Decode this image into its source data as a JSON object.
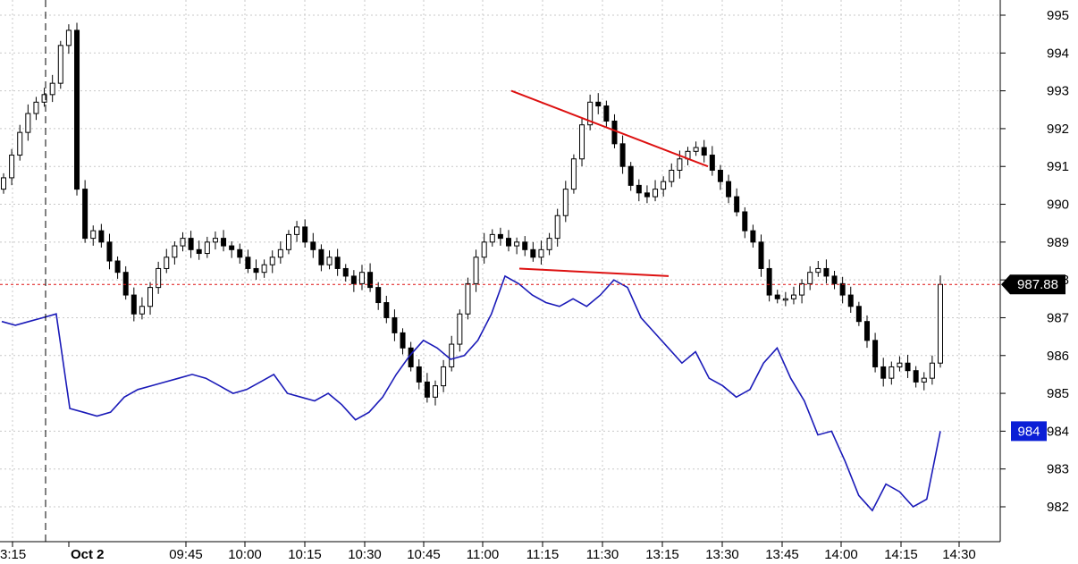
{
  "chart_data": {
    "type": "candlestick",
    "y_axis": {
      "ticks": [
        995,
        994,
        993,
        992,
        991,
        990,
        989,
        988,
        987,
        986,
        985,
        984,
        983,
        982
      ],
      "tick_labels": [
        "995",
        "994",
        "993",
        "992",
        "991",
        "990",
        "989",
        "988",
        "987",
        "986",
        "985",
        "984",
        "983",
        "982"
      ],
      "range": [
        981.2,
        995.4
      ],
      "side": "right"
    },
    "x_axis": {
      "tick_labels": [
        "3:15",
        "Oct 2",
        "09:45",
        "10:00",
        "10:15",
        "10:30",
        "10:45",
        "11:00",
        "11:15",
        "11:30",
        "13:15",
        "13:30",
        "13:45",
        "14:00",
        "14:15",
        "14:30"
      ],
      "bold_labels": [
        "Oct 2"
      ],
      "session_divider_label": "Oct 2"
    },
    "grid": true,
    "current_price_label": "987.88",
    "current_price": 987.88,
    "secondary_price_label": "984",
    "secondary_price": 984,
    "colors": {
      "candle_up": "#ffffff",
      "candle_down": "#000000",
      "overlay_line": "#1a1ab8",
      "trend_lines": "#dd1111",
      "price_line": "#dd1111",
      "secondary_tag": "#0b1fd6"
    },
    "price_series_closes": [
      990.7,
      991.3,
      991.9,
      992.4,
      992.7,
      992.9,
      993.2,
      994.2,
      994.6,
      990.4,
      989.1,
      989.3,
      989.0,
      988.5,
      988.2,
      987.6,
      987.1,
      987.3,
      987.8,
      988.3,
      988.6,
      988.9,
      989.1,
      988.8,
      988.7,
      989.0,
      989.1,
      988.9,
      988.8,
      988.6,
      988.3,
      988.2,
      988.4,
      988.6,
      988.8,
      989.2,
      989.4,
      989.0,
      988.8,
      988.4,
      988.6,
      988.3,
      988.1,
      987.9,
      988.2,
      987.8,
      987.4,
      987.0,
      986.6,
      986.2,
      985.7,
      985.3,
      984.9,
      985.2,
      985.7,
      986.3,
      987.1,
      987.9,
      988.6,
      989.0,
      989.2,
      989.1,
      988.9,
      989.0,
      988.8,
      988.6,
      988.8,
      989.1,
      989.7,
      990.4,
      991.2,
      992.1,
      992.7,
      992.6,
      992.2,
      991.6,
      991.0,
      990.5,
      990.3,
      990.2,
      990.4,
      990.6,
      990.9,
      991.2,
      991.4,
      991.5,
      991.3,
      990.9,
      990.6,
      990.2,
      989.8,
      989.3,
      989.0,
      988.3,
      987.6,
      987.5,
      987.5,
      987.6,
      987.9,
      988.2,
      988.3,
      988.1,
      987.9,
      987.6,
      987.3,
      986.9,
      986.4,
      985.7,
      985.4,
      985.7,
      985.8,
      985.6,
      985.3,
      985.4,
      985.8,
      987.88
    ],
    "overlay_series": [
      986.9,
      986.8,
      986.9,
      987.0,
      987.1,
      984.6,
      984.5,
      984.4,
      984.5,
      984.9,
      985.1,
      985.2,
      985.3,
      985.4,
      985.5,
      985.4,
      985.2,
      985.0,
      985.1,
      985.3,
      985.5,
      985.0,
      984.9,
      984.8,
      985.0,
      984.7,
      984.3,
      984.5,
      984.9,
      985.5,
      986.0,
      986.4,
      986.2,
      985.9,
      986.0,
      986.4,
      987.1,
      988.1,
      987.9,
      987.6,
      987.4,
      987.3,
      987.5,
      987.3,
      987.6,
      988.0,
      987.8,
      987.0,
      986.6,
      986.2,
      985.8,
      986.1,
      985.4,
      985.2,
      984.9,
      985.1,
      985.8,
      986.2,
      985.4,
      984.8,
      983.9,
      984.0,
      983.2,
      982.3,
      981.9,
      982.6,
      982.4,
      982.0,
      982.2,
      984.0
    ],
    "annotations": [
      {
        "type": "trend_line",
        "from": {
          "x_label": "11:00",
          "y": 993.0
        },
        "to": {
          "x_label": "13:30",
          "y": 991.0
        }
      },
      {
        "type": "trend_line",
        "from": {
          "x_label": "11:00",
          "y": 988.3
        },
        "to": {
          "x_label": "13:15",
          "y": 988.1
        }
      }
    ]
  }
}
